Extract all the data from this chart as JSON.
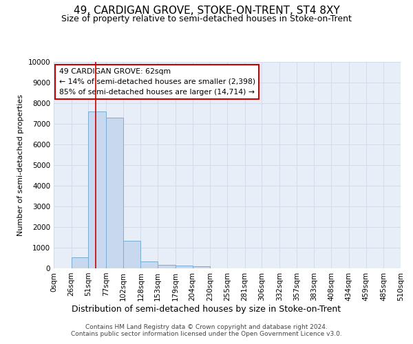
{
  "title": "49, CARDIGAN GROVE, STOKE-ON-TRENT, ST4 8XY",
  "subtitle": "Size of property relative to semi-detached houses in Stoke-on-Trent",
  "xlabel": "Distribution of semi-detached houses by size in Stoke-on-Trent",
  "ylabel": "Number of semi-detached properties",
  "footer1": "Contains HM Land Registry data © Crown copyright and database right 2024.",
  "footer2": "Contains public sector information licensed under the Open Government Licence v3.0.",
  "bin_edges": [
    0,
    26,
    51,
    77,
    102,
    128,
    153,
    179,
    204,
    230,
    255,
    281,
    306,
    332,
    357,
    383,
    408,
    434,
    459,
    485,
    510
  ],
  "bar_heights": [
    0,
    550,
    7600,
    7300,
    1350,
    350,
    175,
    150,
    100,
    0,
    0,
    0,
    0,
    0,
    0,
    0,
    0,
    0,
    0,
    0
  ],
  "bar_color": "#c8d8ee",
  "bar_edge_color": "#7aadd4",
  "grid_color": "#d0d8e8",
  "background_color": "#e8eef8",
  "property_size": 62,
  "annotation_line1": "49 CARDIGAN GROVE: 62sqm",
  "annotation_line2": "← 14% of semi-detached houses are smaller (2,398)",
  "annotation_line3": "85% of semi-detached houses are larger (14,714) →",
  "red_line_color": "#cc0000",
  "annotation_box_color": "#cc0000",
  "ylim": [
    0,
    10000
  ],
  "title_fontsize": 11,
  "subtitle_fontsize": 9,
  "tick_label_fontsize": 7.5,
  "ylabel_fontsize": 8,
  "xlabel_fontsize": 9
}
